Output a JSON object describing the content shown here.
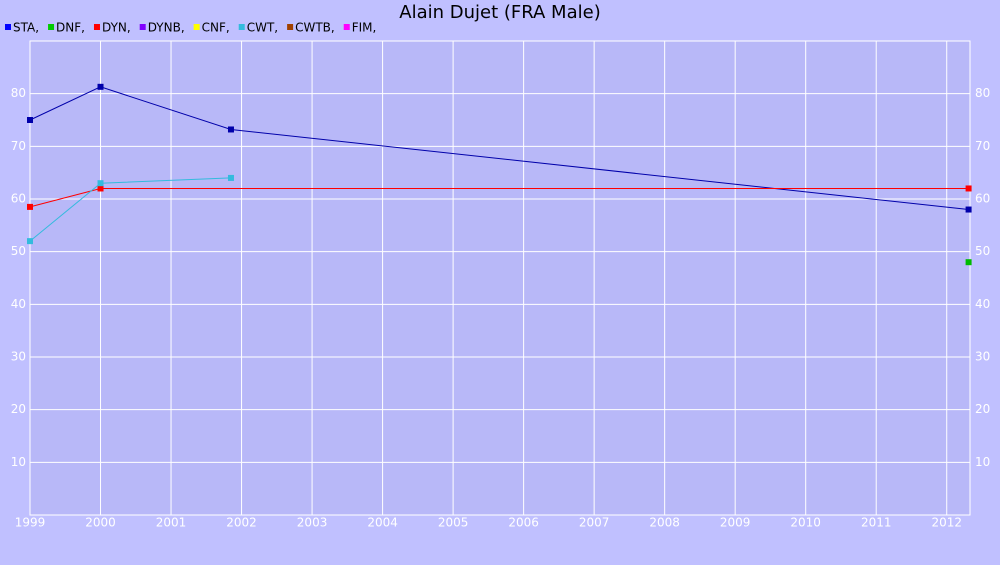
{
  "chart_data": {
    "type": "line",
    "title": "Alain Dujet (FRA Male)",
    "xlim": [
      1999,
      2012.33
    ],
    "xticks": [
      1999,
      2000,
      2001,
      2002,
      2003,
      2004,
      2005,
      2006,
      2007,
      2008,
      2009,
      2010,
      2011,
      2012
    ],
    "ylim": [
      0,
      90
    ],
    "yticks": [
      10,
      20,
      30,
      40,
      50,
      60,
      70,
      80
    ],
    "grid": true,
    "series": [
      {
        "name": "STA,",
        "color": "#0000ff",
        "line_color": "#0000aa",
        "x": [
          1999,
          2000,
          2001.85,
          2012.31
        ],
        "values": [
          75,
          81.3,
          73.2,
          58
        ]
      },
      {
        "name": "DNF,",
        "color": "#00cc00",
        "line_color": "#00bb00",
        "x": [
          2012.31
        ],
        "values": [
          48
        ]
      },
      {
        "name": "DYN,",
        "color": "#ff0000",
        "line_color": "#ff0000",
        "x": [
          1999,
          2000,
          2012.31
        ],
        "values": [
          58.5,
          62,
          62
        ]
      },
      {
        "name": "DYNB,",
        "color": "#8000ff",
        "line_color": "#8000ff",
        "x": [],
        "values": []
      },
      {
        "name": "CNF,",
        "color": "#ffff00",
        "line_color": "#ffff00",
        "x": [],
        "values": []
      },
      {
        "name": "CWT,",
        "color": "#33bbdd",
        "line_color": "#33bbdd",
        "x": [
          1999,
          2000,
          2001.85
        ],
        "values": [
          52,
          63,
          64
        ]
      },
      {
        "name": "CWTB,",
        "color": "#a04000",
        "line_color": "#a04000",
        "x": [],
        "values": []
      },
      {
        "name": "FIM,",
        "color": "#ff00ff",
        "line_color": "#ff00ff",
        "x": [],
        "values": []
      }
    ]
  }
}
